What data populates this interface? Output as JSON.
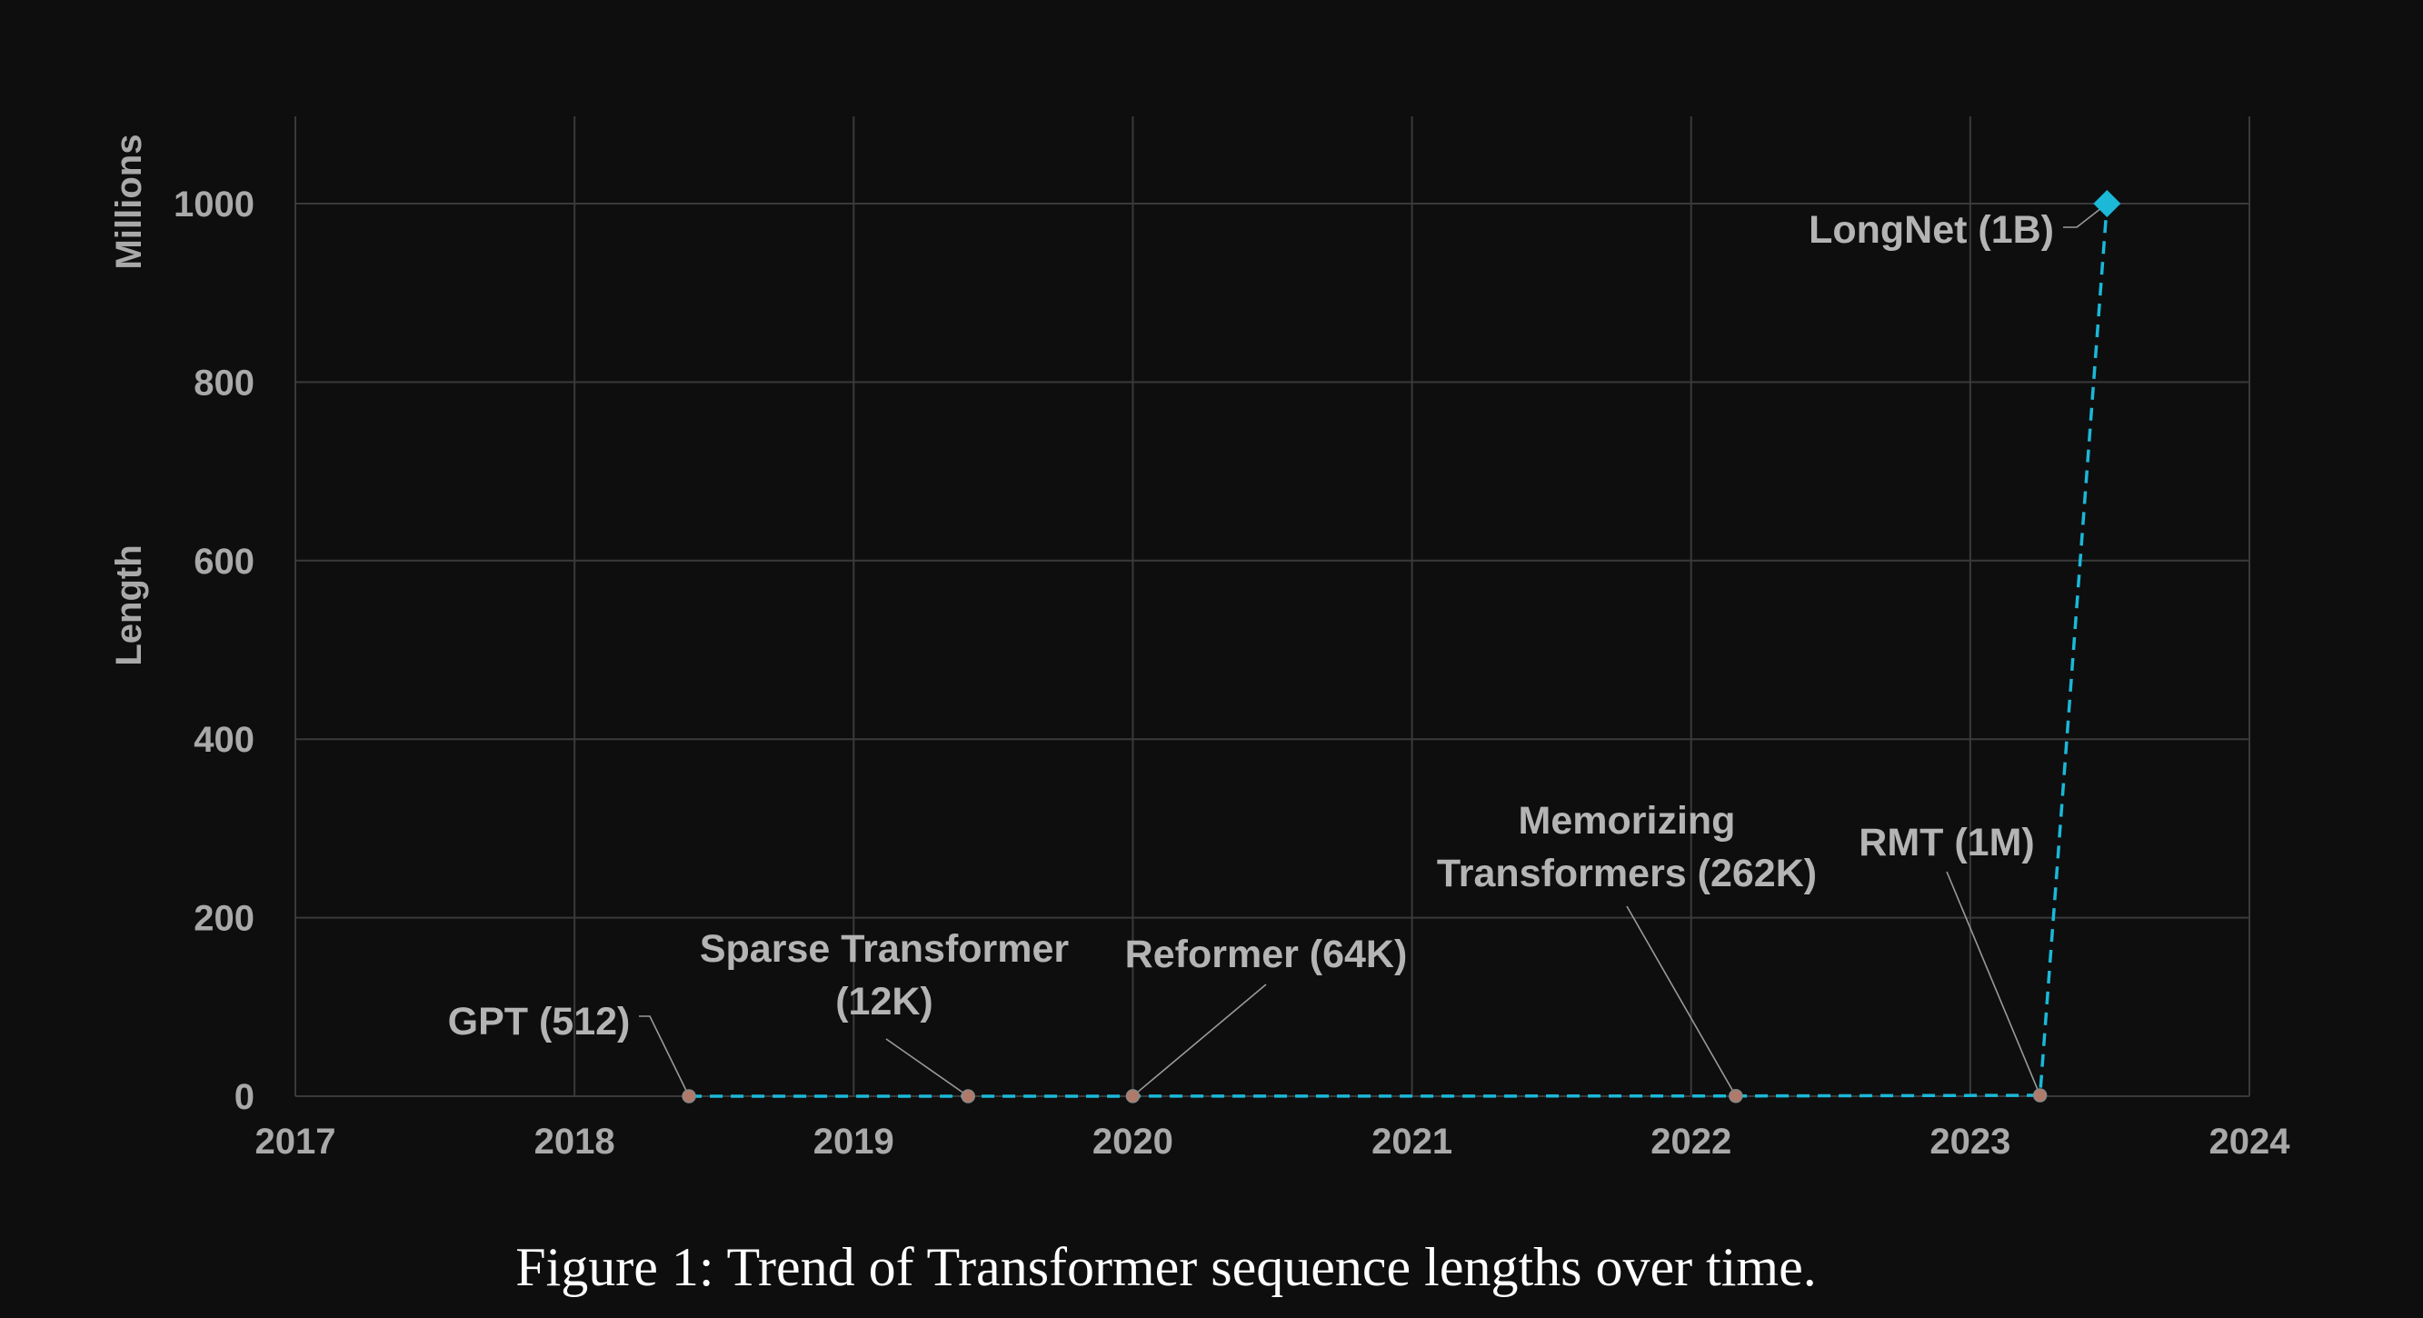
{
  "caption": "Figure 1: Trend of Transformer sequence lengths over time.",
  "chart_data": {
    "type": "line",
    "ylabel_top": "Millions",
    "ylabel_bottom": "Length",
    "xlim": [
      2017,
      2024
    ],
    "ylim": [
      0,
      1000
    ],
    "xticks": [
      "2017",
      "2018",
      "2019",
      "2020",
      "2021",
      "2022",
      "2023",
      "2024"
    ],
    "yticks": [
      "0",
      "200",
      "400",
      "600",
      "800",
      "1000"
    ],
    "grid": true,
    "series_color": "#1bb8d8",
    "highlight_color": "#1bb8d8",
    "points": [
      {
        "name": "GPT",
        "x": 2018.41,
        "y": 0.000512,
        "label": "GPT (512)"
      },
      {
        "name": "Sparse Transformer",
        "x": 2019.41,
        "y": 0.012,
        "label": "Sparse Transformer (12K)",
        "label_lines": [
          "Sparse Transformer",
          "(12K)"
        ]
      },
      {
        "name": "Reformer",
        "x": 2020.0,
        "y": 0.064,
        "label": "Reformer (64K)"
      },
      {
        "name": "Memorizing Transformers",
        "x": 2022.16,
        "y": 0.262,
        "label": "Memorizing Transformers (262K)",
        "label_lines": [
          "Memorizing",
          "Transformers (262K)"
        ]
      },
      {
        "name": "RMT",
        "x": 2023.25,
        "y": 1,
        "label": "RMT (1M)"
      },
      {
        "name": "LongNet",
        "x": 2023.49,
        "y": 1000,
        "label": "LongNet (1B)",
        "highlight": true
      }
    ]
  }
}
